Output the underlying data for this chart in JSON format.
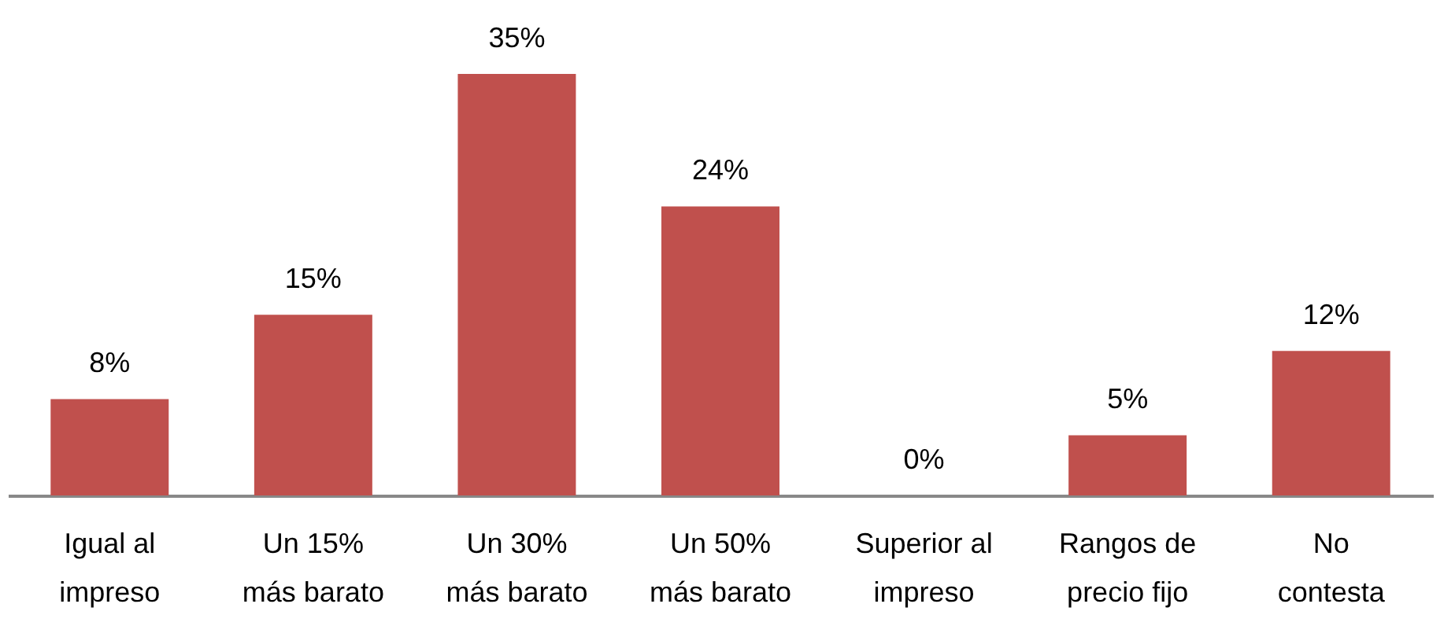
{
  "chart_data": {
    "type": "bar",
    "categories": [
      "Igual al impreso",
      "Un 15% más barato",
      "Un 30% más barato",
      "Un 50% más barato",
      "Superior al impreso",
      "Rangos de precio fijo",
      "No contesta"
    ],
    "values": [
      8,
      15,
      35,
      24,
      0,
      5,
      12
    ],
    "value_labels": [
      "8%",
      "15%",
      "35%",
      "24%",
      "0%",
      "5%",
      "12%"
    ],
    "color": "#c0504d",
    "tick_labels": "x"
  }
}
